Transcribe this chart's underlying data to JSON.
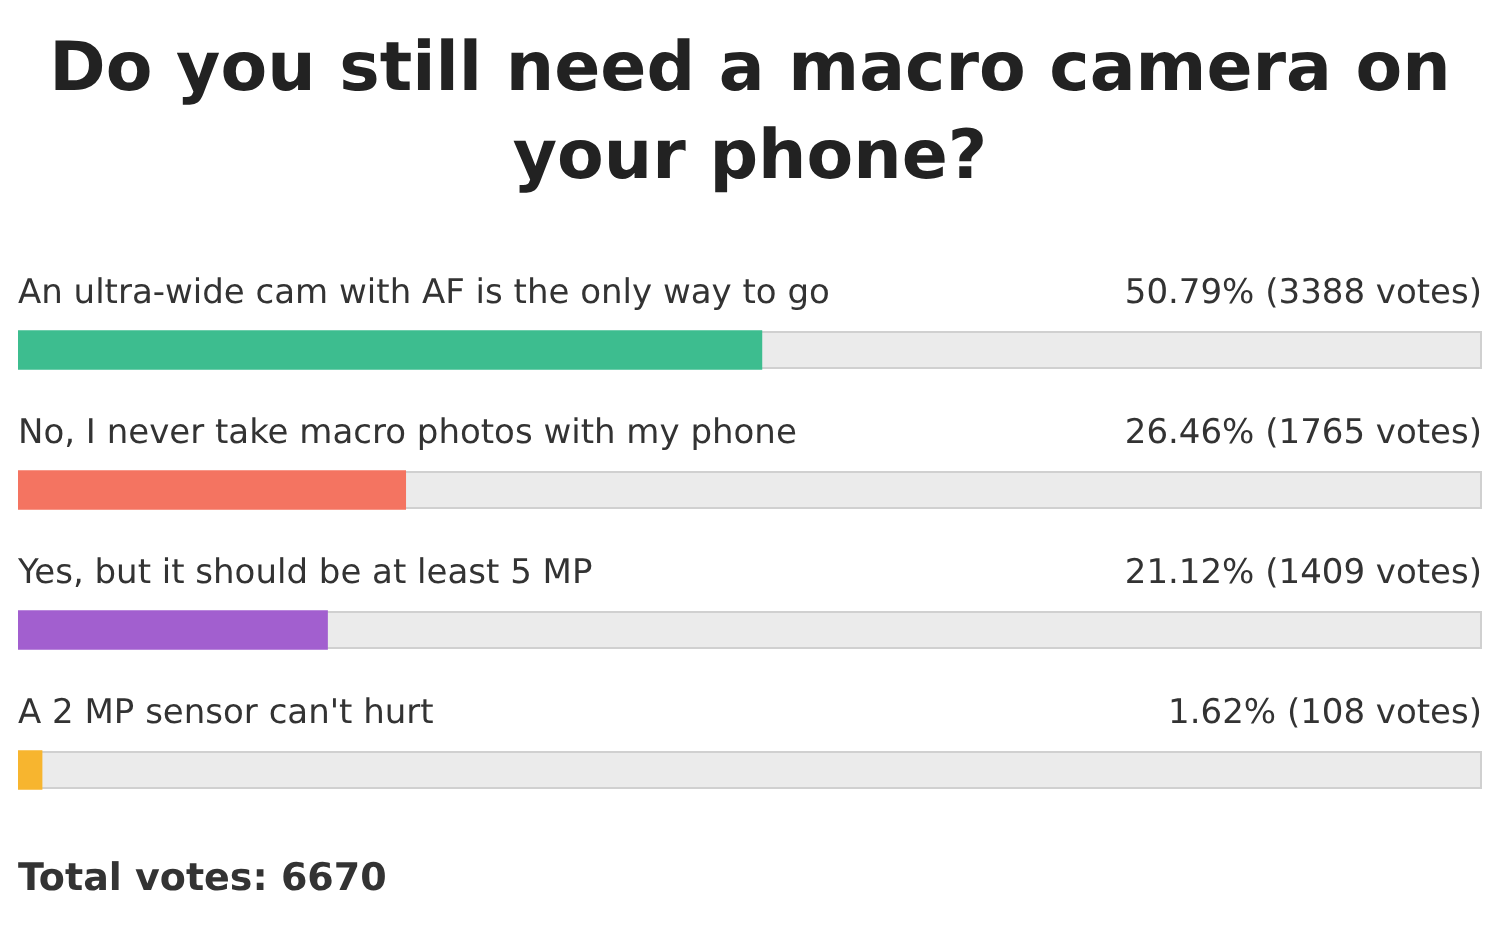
{
  "chart_data": {
    "type": "bar",
    "orientation": "horizontal",
    "title": "Do you still need a macro camera on your phone?",
    "categories": [
      "An ultra-wide cam with AF is the only way to go",
      "No, I never take macro photos with my phone",
      "Yes, but it should be at least 5 MP",
      "A 2 MP sensor can't hurt"
    ],
    "values": [
      50.79,
      26.46,
      21.12,
      1.62
    ],
    "colors": [
      "#3dbd8f",
      "#f47461",
      "#a25fcf",
      "#f7b52f"
    ],
    "value_labels": [
      "50.79% (3388 votes)",
      "26.46% (1765 votes)",
      "21.12% (1409 votes)",
      "1.62% (108 votes)"
    ],
    "xlim": [
      0,
      100
    ],
    "tick_labels": false,
    "annotations": [
      "Total votes: 6670"
    ]
  }
}
